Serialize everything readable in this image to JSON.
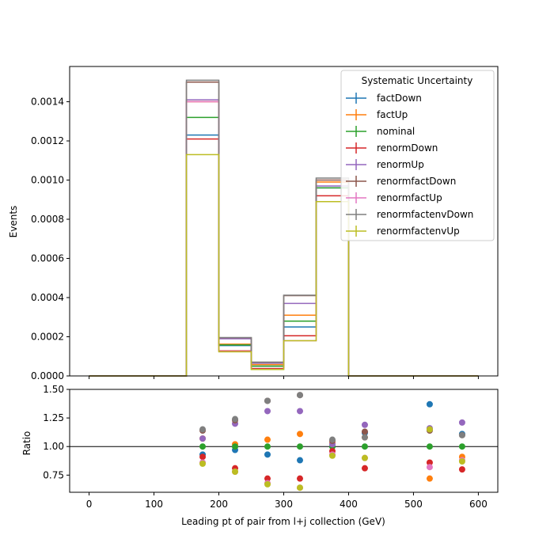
{
  "chart_data": [
    {
      "type": "line",
      "title": "",
      "xlabel": "",
      "ylabel": "Events",
      "xlim": [
        -30,
        630
      ],
      "ylim": [
        0,
        0.00158
      ],
      "yticks": [
        "0.0000",
        "0.0002",
        "0.0004",
        "0.0006",
        "0.0008",
        "0.0010",
        "0.0012",
        "0.0014"
      ],
      "ytick_values": [
        0,
        0.0002,
        0.0004,
        0.0006,
        0.0008,
        0.001,
        0.0012,
        0.0014
      ],
      "xticks_values": [
        0,
        100,
        200,
        300,
        400,
        500,
        600
      ],
      "bin_edges": [
        0,
        50,
        100,
        150,
        200,
        250,
        300,
        350,
        400,
        450,
        500,
        550,
        600
      ],
      "legend_title": "Systematic Uncertainty",
      "legend_position": "top-right",
      "series": [
        {
          "name": "factDown",
          "color": "#1f77b4",
          "values": [
            0,
            0,
            0,
            0.00123,
            0.000155,
            5e-05,
            0.00025,
            0.00096,
            0,
            0,
            0,
            0
          ]
        },
        {
          "name": "factUp",
          "color": "#ff7f0e",
          "values": [
            0,
            0,
            0,
            0.0014,
            0.000162,
            5.8e-05,
            0.00031,
            0.00099,
            0,
            0,
            0,
            0
          ]
        },
        {
          "name": "nominal",
          "color": "#2ca02c",
          "values": [
            0,
            0,
            0,
            0.00132,
            0.000158,
            5e-05,
            0.00028,
            0.00096,
            0,
            0,
            0,
            0
          ]
        },
        {
          "name": "renormDown",
          "color": "#d62728",
          "values": [
            0,
            0,
            0,
            0.00121,
            0.000128,
            3.8e-05,
            0.000205,
            0.00092,
            0,
            0,
            0,
            0
          ]
        },
        {
          "name": "renormUp",
          "color": "#9467bd",
          "values": [
            0,
            0,
            0,
            0.00141,
            0.00019,
            6.5e-05,
            0.00037,
            0.00097,
            0,
            0,
            0,
            0
          ]
        },
        {
          "name": "renormfactDown",
          "color": "#8c564b",
          "values": [
            0,
            0,
            0,
            0.0015,
            0.000195,
            7e-05,
            0.00041,
            0.001,
            0,
            0,
            0,
            0
          ]
        },
        {
          "name": "renormfactUp",
          "color": "#e377c2",
          "values": [
            0,
            0,
            0,
            0.0014,
            0.000125,
            3.4e-05,
            0.00018,
            0.00089,
            0,
            0,
            0,
            0
          ]
        },
        {
          "name": "renormfactenvDown",
          "color": "#7f7f7f",
          "values": [
            0,
            0,
            0,
            0.00151,
            0.000196,
            7e-05,
            0.000412,
            0.00101,
            0,
            0,
            0,
            0
          ]
        },
        {
          "name": "renormfactenvUp",
          "color": "#bcbd22",
          "values": [
            0,
            0,
            0,
            0.00113,
            0.000123,
            3.3e-05,
            0.00018,
            0.00089,
            0,
            0,
            0,
            0
          ]
        }
      ]
    },
    {
      "type": "scatter",
      "title": "",
      "xlabel": "Leading pt of pair from l+j collection (GeV)",
      "ylabel": "Ratio",
      "xlim": [
        -30,
        630
      ],
      "ylim": [
        0.6,
        1.5
      ],
      "yticks": [
        "0.75",
        "1.00",
        "1.25",
        "1.50"
      ],
      "ytick_values": [
        0.75,
        1.0,
        1.25,
        1.5
      ],
      "xticks": [
        "0",
        "100",
        "200",
        "300",
        "400",
        "500",
        "600"
      ],
      "xtick_values": [
        0,
        100,
        200,
        300,
        400,
        500,
        600
      ],
      "reference_line": 1.0,
      "series": [
        {
          "name": "factDown",
          "color": "#1f77b4",
          "x": [
            175,
            225,
            275,
            325,
            375,
            425,
            525,
            575
          ],
          "y": [
            0.93,
            0.97,
            0.93,
            0.88,
            1.0,
            1.12,
            1.37,
            1.11
          ]
        },
        {
          "name": "factUp",
          "color": "#ff7f0e",
          "x": [
            175,
            225,
            275,
            325,
            375,
            425,
            525,
            575
          ],
          "y": [
            1.07,
            1.02,
            1.06,
            1.11,
            1.03,
            1.08,
            0.72,
            0.91
          ]
        },
        {
          "name": "nominal",
          "color": "#2ca02c",
          "x": [
            175,
            225,
            275,
            325,
            375,
            425,
            525,
            575
          ],
          "y": [
            1.0,
            1.0,
            1.0,
            1.0,
            1.0,
            1.0,
            1.0,
            1.0
          ]
        },
        {
          "name": "renormDown",
          "color": "#d62728",
          "x": [
            175,
            225,
            275,
            325,
            375,
            425,
            525,
            575
          ],
          "y": [
            0.91,
            0.81,
            0.72,
            0.72,
            0.96,
            0.81,
            0.86,
            0.8
          ]
        },
        {
          "name": "renormUp",
          "color": "#9467bd",
          "x": [
            175,
            225,
            275,
            325,
            375,
            425,
            525,
            575
          ],
          "y": [
            1.07,
            1.2,
            1.31,
            1.31,
            1.02,
            1.19,
            1.16,
            1.21
          ]
        },
        {
          "name": "renormfactDown",
          "color": "#8c564b",
          "x": [
            175,
            225,
            275,
            325,
            375,
            425,
            525,
            575
          ],
          "y": [
            1.14,
            1.23,
            1.4,
            1.45,
            1.05,
            1.13,
            1.14,
            1.1
          ]
        },
        {
          "name": "renormfactUp",
          "color": "#e377c2",
          "x": [
            175,
            225,
            275,
            325,
            375,
            425,
            525,
            575
          ],
          "y": [
            0.86,
            0.78,
            0.68,
            0.64,
            0.93,
            0.9,
            0.82,
            0.88
          ]
        },
        {
          "name": "renormfactenvDown",
          "color": "#7f7f7f",
          "x": [
            175,
            225,
            275,
            325,
            375,
            425,
            525,
            575
          ],
          "y": [
            1.15,
            1.24,
            1.4,
            1.45,
            1.06,
            1.08,
            1.15,
            1.1
          ]
        },
        {
          "name": "renormfactenvUp",
          "color": "#bcbd22",
          "x": [
            175,
            225,
            275,
            325,
            375,
            425,
            525,
            575
          ],
          "y": [
            0.85,
            0.78,
            0.67,
            0.64,
            0.92,
            0.9,
            1.15,
            0.87
          ]
        }
      ]
    }
  ]
}
